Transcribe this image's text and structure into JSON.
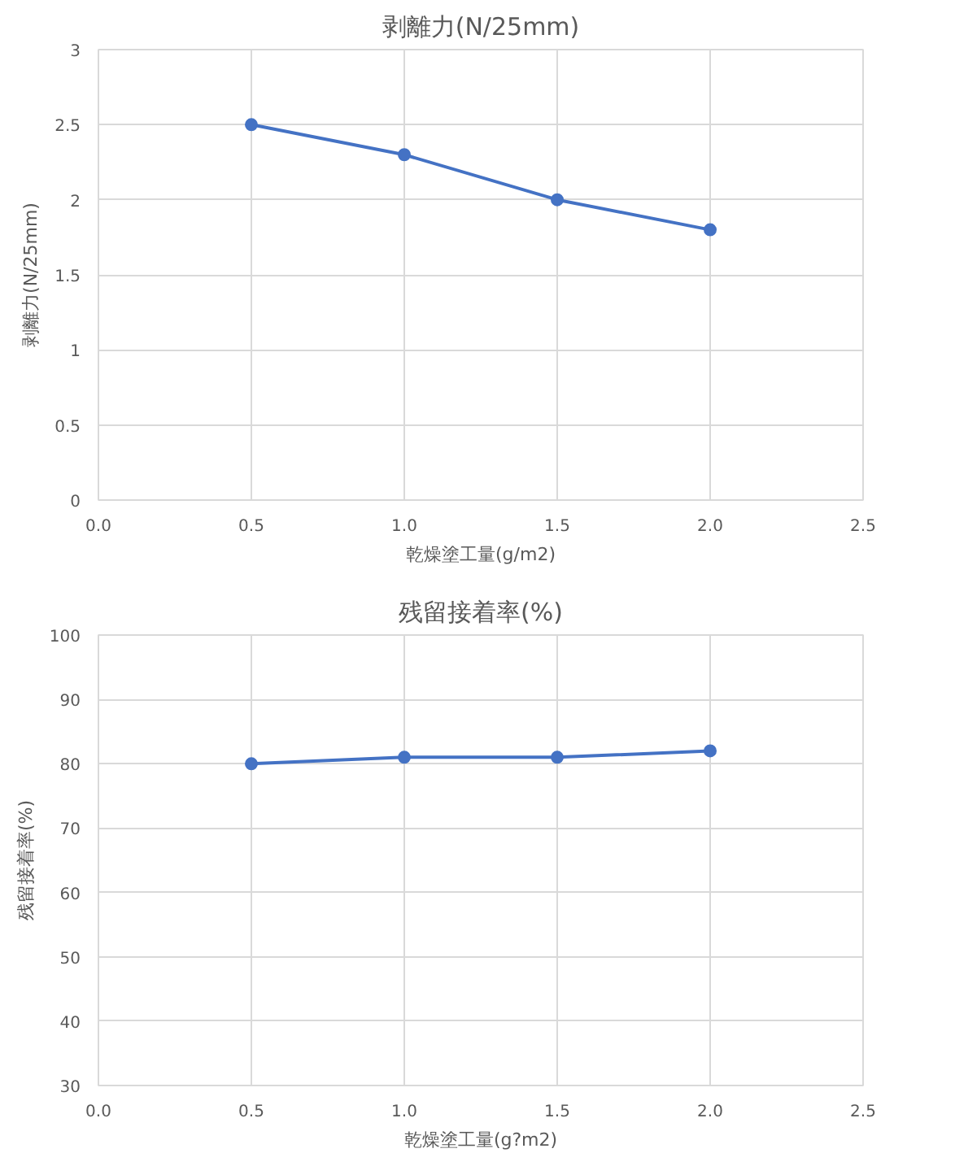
{
  "chart_data": [
    {
      "type": "line",
      "title": "剥離力(N/25mm)",
      "xlabel": "乾燥塗工量(g/m2)",
      "ylabel": "剥離力(N/25mm)",
      "x": [
        0.5,
        1.0,
        1.5,
        2.0
      ],
      "series": [
        {
          "color": "#4472c4",
          "values": [
            2.5,
            2.3,
            2.0,
            1.8
          ]
        }
      ],
      "xlim": [
        0,
        2.5
      ],
      "xticks": [
        {
          "value": 0,
          "label": "0.0"
        },
        0.5,
        {
          "value": 1,
          "label": "1.0"
        },
        1.5,
        {
          "value": 2,
          "label": "2.0"
        },
        2.5
      ],
      "ylim": [
        0,
        3
      ],
      "yticks": [
        0,
        0.5,
        1,
        1.5,
        2,
        2.5,
        3
      ],
      "grid": true,
      "marker": "circle",
      "line_style": "solid"
    },
    {
      "type": "line",
      "title": "残留接着率(%)",
      "xlabel": "乾燥塗工量(g?m2)",
      "ylabel": "残留接着率(%)",
      "x": [
        0.5,
        1.0,
        1.5,
        2.0
      ],
      "series": [
        {
          "color": "#4472c4",
          "values": [
            80,
            81,
            81,
            82
          ]
        }
      ],
      "xlim": [
        0,
        2.5
      ],
      "xticks": [
        {
          "value": 0,
          "label": "0.0"
        },
        0.5,
        {
          "value": 1,
          "label": "1.0"
        },
        1.5,
        {
          "value": 2,
          "label": "2.0"
        },
        2.5
      ],
      "ylim": [
        30,
        100
      ],
      "yticks": [
        30,
        40,
        50,
        60,
        70,
        80,
        90,
        100
      ],
      "grid": true,
      "marker": "circle",
      "line_style": "solid"
    }
  ]
}
